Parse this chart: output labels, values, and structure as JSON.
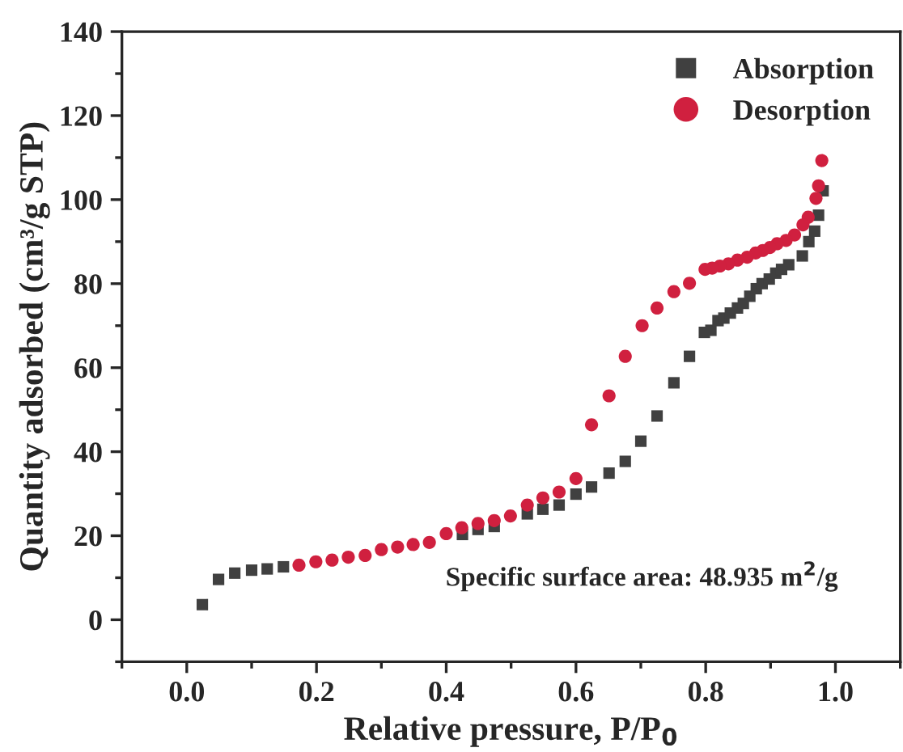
{
  "chart_data": {
    "type": "scatter",
    "xlabel": "Relative pressure, P/P$_{0}$",
    "ylabel": "Quantity adsorbed (cm³/g STP)",
    "annotations": [
      "Specific surface area: 48.935 m$^{2}$/g"
    ],
    "xlim": [
      -0.1,
      1.1
    ],
    "xticks": [
      {
        "value": 0,
        "label": "0.0"
      },
      0.2,
      0.4,
      0.6,
      0.8,
      {
        "value": 1,
        "label": "1.0"
      }
    ],
    "ylim": [
      -10,
      140
    ],
    "yticks": [
      0,
      20,
      40,
      60,
      80,
      100,
      120,
      140
    ],
    "legend": "top right",
    "grid": false,
    "series": [
      {
        "name": "Absorption",
        "color": "#404040",
        "marker": "square",
        "x": [
          0.024,
          0.049,
          0.074,
          0.1,
          0.124,
          0.149,
          0.4,
          0.425,
          0.449,
          0.474,
          0.499,
          0.525,
          0.549,
          0.574,
          0.6,
          0.624,
          0.651,
          0.676,
          0.7,
          0.725,
          0.751,
          0.775,
          0.798,
          0.808,
          0.819,
          0.828,
          0.838,
          0.849,
          0.858,
          0.868,
          0.878,
          0.887,
          0.898,
          0.908,
          0.917,
          0.928,
          0.949,
          0.959,
          0.968,
          0.974,
          0.981
        ],
        "values": [
          3.6,
          9.6,
          11.1,
          11.8,
          12.1,
          12.6,
          null,
          20.3,
          21.5,
          22.2,
          null,
          25.2,
          26.3,
          27.3,
          29.9,
          31.6,
          34.9,
          37.7,
          42.5,
          48.5,
          56.4,
          62.7,
          68.4,
          68.9,
          71.2,
          71.8,
          73.0,
          74.2,
          75.3,
          77.0,
          78.8,
          80.0,
          81.1,
          82.5,
          83.4,
          84.5,
          86.6,
          90.0,
          92.5,
          96.3,
          102.1
        ]
      },
      {
        "name": "Desorption",
        "color": "#d0203f",
        "marker": "circle",
        "x": [
          0.979,
          0.974,
          0.97,
          0.958,
          0.95,
          0.937,
          0.924,
          0.91,
          0.899,
          0.888,
          0.877,
          0.864,
          0.849,
          0.835,
          0.822,
          0.81,
          0.799,
          0.775,
          0.751,
          0.725,
          0.702,
          0.676,
          0.651,
          0.624,
          0.6,
          0.574,
          0.549,
          0.525,
          0.499,
          0.474,
          0.449,
          0.424,
          0.4,
          0.374,
          0.349,
          0.325,
          0.3,
          0.275,
          0.249,
          0.224,
          0.199,
          0.173
        ],
        "values": [
          109.3,
          103.3,
          100.3,
          95.8,
          94.0,
          91.6,
          90.3,
          89.5,
          88.6,
          87.9,
          87.3,
          86.3,
          85.6,
          84.7,
          84.2,
          83.7,
          83.4,
          80.1,
          78.1,
          74.2,
          70.0,
          62.7,
          53.3,
          46.4,
          33.6,
          30.4,
          29.0,
          27.3,
          24.7,
          23.6,
          22.9,
          21.9,
          20.5,
          18.4,
          17.9,
          17.3,
          16.7,
          15.3,
          14.9,
          14.2,
          13.8,
          13.0
        ]
      }
    ]
  }
}
